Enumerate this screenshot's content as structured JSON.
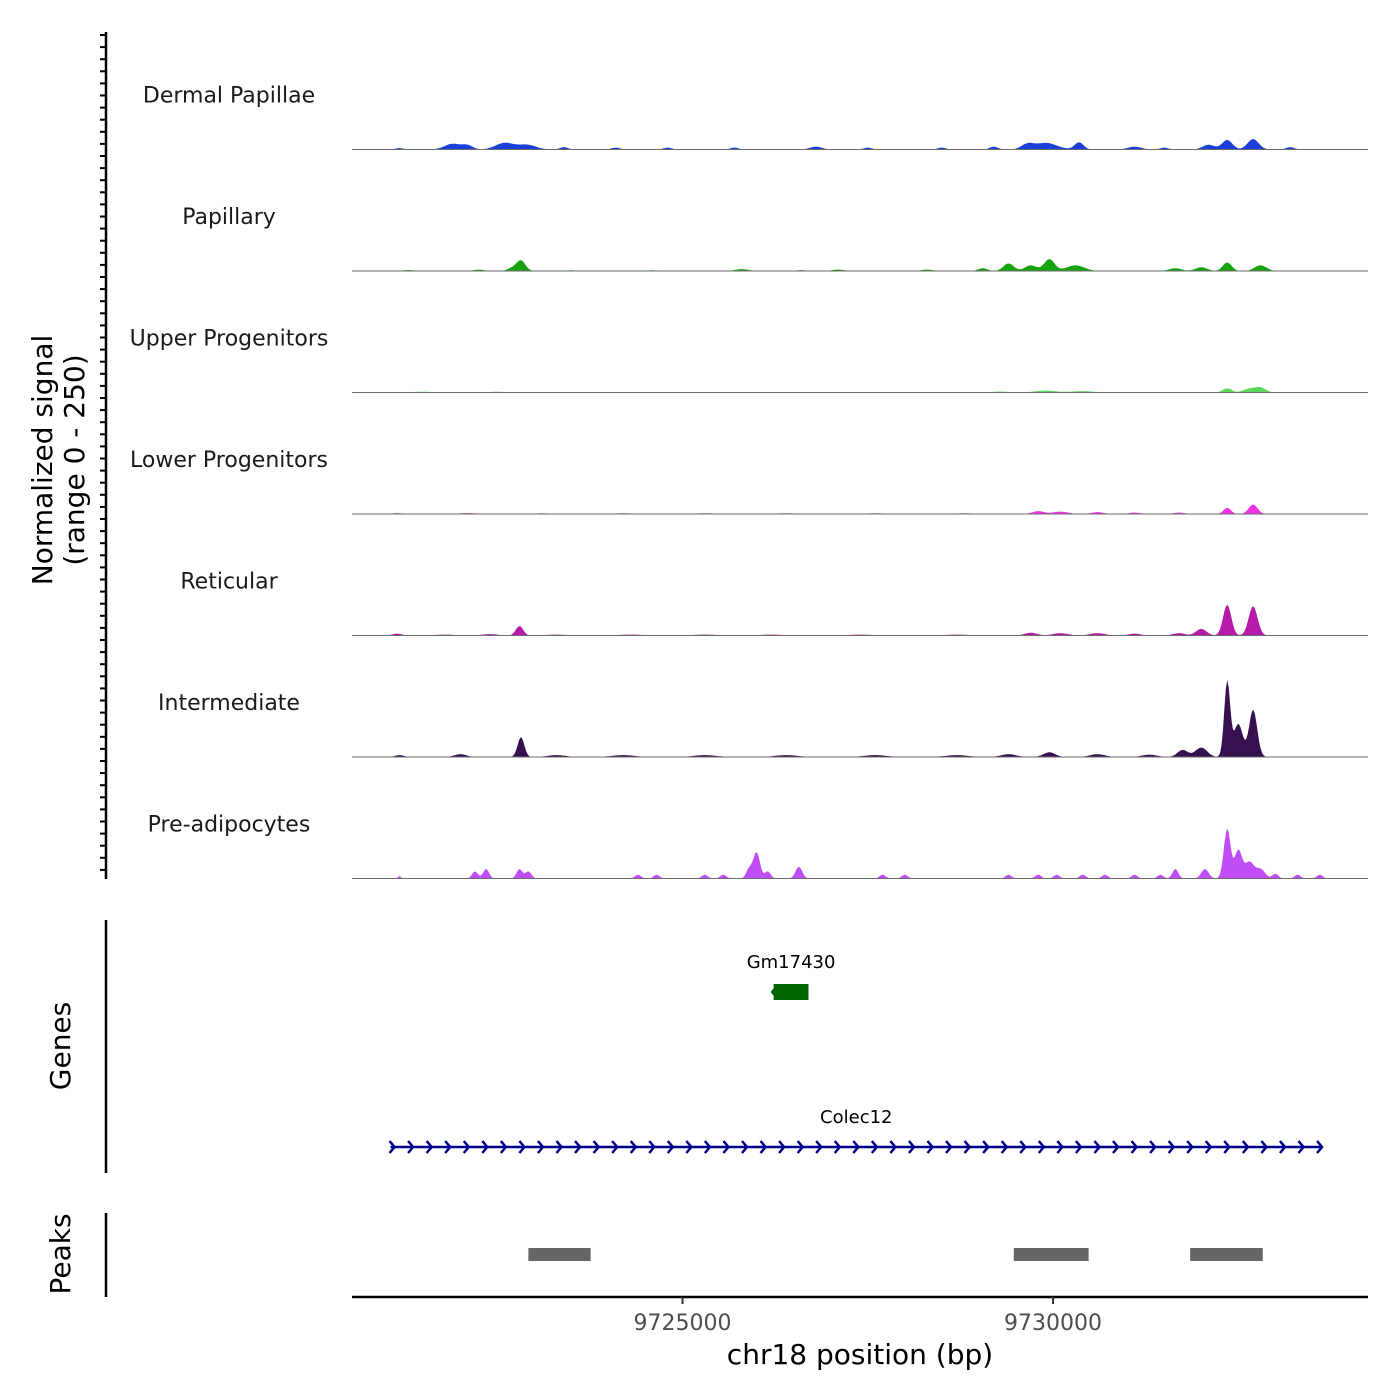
{
  "chart_data": {
    "type": "area",
    "title": "",
    "ylabel_line1": "Normalized signal",
    "ylabel_line2": "(range 0 - 250)",
    "ylim": [
      0,
      250
    ],
    "xlabel": "chr18 position (bp)",
    "xlim": [
      9720540,
      9734250
    ],
    "x_ticks": [
      9725000,
      9730000
    ],
    "x_tick_labels": [
      "9725000",
      "9730000"
    ],
    "series": [
      {
        "name": "Dermal Papillae",
        "color": "#1a3fdc",
        "peaks": [
          [
            9721180,
            3,
            55
          ],
          [
            9721900,
            12,
            110
          ],
          [
            9722100,
            8,
            70
          ],
          [
            9722600,
            14,
            120
          ],
          [
            9722900,
            10,
            120
          ],
          [
            9723400,
            5,
            55
          ],
          [
            9724100,
            4,
            55
          ],
          [
            9724800,
            4,
            55
          ],
          [
            9725700,
            4,
            55
          ],
          [
            9726800,
            6,
            80
          ],
          [
            9727500,
            4,
            55
          ],
          [
            9728500,
            4,
            55
          ],
          [
            9729200,
            6,
            55
          ],
          [
            9729650,
            10,
            80
          ],
          [
            9729900,
            14,
            150
          ],
          [
            9730350,
            15,
            60
          ],
          [
            9731100,
            6,
            90
          ],
          [
            9731500,
            4,
            55
          ],
          [
            9732100,
            10,
            80
          ],
          [
            9732350,
            20,
            70
          ],
          [
            9732700,
            22,
            75
          ],
          [
            9733200,
            5,
            55
          ]
        ]
      },
      {
        "name": "Papillary",
        "color": "#17a30e",
        "peaks": [
          [
            9721300,
            2,
            80
          ],
          [
            9722250,
            3,
            70
          ],
          [
            9722700,
            6,
            60
          ],
          [
            9722820,
            22,
            60
          ],
          [
            9723500,
            1.5,
            70
          ],
          [
            9724600,
            1.5,
            80
          ],
          [
            9725800,
            4,
            90
          ],
          [
            9726600,
            2,
            60
          ],
          [
            9727100,
            3,
            80
          ],
          [
            9728300,
            3,
            80
          ],
          [
            9729050,
            6,
            60
          ],
          [
            9729400,
            16,
            70
          ],
          [
            9729700,
            12,
            80
          ],
          [
            9729950,
            25,
            70
          ],
          [
            9730300,
            12,
            120
          ],
          [
            9731650,
            6,
            80
          ],
          [
            9732000,
            8,
            80
          ],
          [
            9732350,
            18,
            60
          ],
          [
            9732800,
            12,
            80
          ]
        ]
      },
      {
        "name": "Upper Progenitors",
        "color": "#5bd85a",
        "peaks": [
          [
            9721500,
            1.5,
            150
          ],
          [
            9722500,
            1.5,
            120
          ],
          [
            9723400,
            1,
            150
          ],
          [
            9724600,
            1,
            120
          ],
          [
            9725900,
            1,
            140
          ],
          [
            9727100,
            1,
            120
          ],
          [
            9728300,
            1,
            120
          ],
          [
            9729300,
            2,
            100
          ],
          [
            9729900,
            4,
            140
          ],
          [
            9730400,
            3,
            140
          ],
          [
            9732350,
            9,
            60
          ],
          [
            9732650,
            8,
            80
          ],
          [
            9732800,
            10,
            70
          ]
        ]
      },
      {
        "name": "Lower Progenitors",
        "color": "#f12fe4",
        "peaks": [
          [
            9721150,
            2,
            60
          ],
          [
            9722100,
            2,
            120
          ],
          [
            9723100,
            1.5,
            100
          ],
          [
            9724200,
            1.5,
            150
          ],
          [
            9725300,
            1.5,
            150
          ],
          [
            9726400,
            1.5,
            150
          ],
          [
            9727600,
            1.5,
            150
          ],
          [
            9728800,
            1.5,
            120
          ],
          [
            9729800,
            6,
            80
          ],
          [
            9730100,
            5,
            100
          ],
          [
            9730600,
            4,
            80
          ],
          [
            9731100,
            3,
            80
          ],
          [
            9731700,
            3,
            80
          ],
          [
            9732350,
            13,
            50
          ],
          [
            9732700,
            20,
            60
          ]
        ]
      },
      {
        "name": "Reticular",
        "color": "#b51aa8",
        "peaks": [
          [
            9721150,
            4,
            60
          ],
          [
            9721800,
            2,
            120
          ],
          [
            9722400,
            3,
            100
          ],
          [
            9722800,
            20,
            50
          ],
          [
            9723300,
            2,
            120
          ],
          [
            9724300,
            2,
            150
          ],
          [
            9725300,
            2,
            150
          ],
          [
            9726200,
            2,
            150
          ],
          [
            9727400,
            2,
            150
          ],
          [
            9728700,
            2,
            150
          ],
          [
            9729700,
            6,
            80
          ],
          [
            9730100,
            5,
            100
          ],
          [
            9730600,
            5,
            100
          ],
          [
            9731100,
            4,
            80
          ],
          [
            9731700,
            5,
            80
          ],
          [
            9732000,
            14,
            70
          ],
          [
            9732350,
            65,
            55
          ],
          [
            9732700,
            62,
            60
          ]
        ]
      },
      {
        "name": "Intermediate",
        "color": "#36104f",
        "peaks": [
          [
            9721180,
            4,
            60
          ],
          [
            9722000,
            6,
            80
          ],
          [
            9722820,
            42,
            45
          ],
          [
            9723300,
            4,
            120
          ],
          [
            9724200,
            4,
            150
          ],
          [
            9725300,
            4,
            150
          ],
          [
            9726400,
            4,
            150
          ],
          [
            9727600,
            4,
            150
          ],
          [
            9728700,
            4,
            150
          ],
          [
            9729400,
            6,
            100
          ],
          [
            9729950,
            10,
            80
          ],
          [
            9730600,
            6,
            100
          ],
          [
            9731300,
            5,
            100
          ],
          [
            9731750,
            15,
            70
          ],
          [
            9732000,
            20,
            80
          ],
          [
            9732350,
            160,
            40
          ],
          [
            9732500,
            70,
            60
          ],
          [
            9732700,
            100,
            55
          ]
        ]
      },
      {
        "name": "Pre-adipocytes",
        "color": "#bf4ef6",
        "peaks": [
          [
            9721180,
            5,
            20
          ],
          [
            9722200,
            15,
            40
          ],
          [
            9722350,
            20,
            40
          ],
          [
            9722800,
            20,
            40
          ],
          [
            9722920,
            15,
            40
          ],
          [
            9724400,
            8,
            40
          ],
          [
            9724650,
            8,
            40
          ],
          [
            9725300,
            8,
            40
          ],
          [
            9725550,
            8,
            40
          ],
          [
            9725900,
            20,
            40
          ],
          [
            9726000,
            55,
            45
          ],
          [
            9726150,
            15,
            40
          ],
          [
            9726570,
            25,
            45
          ],
          [
            9727700,
            8,
            40
          ],
          [
            9728000,
            8,
            40
          ],
          [
            9729400,
            8,
            40
          ],
          [
            9729800,
            8,
            40
          ],
          [
            9730050,
            8,
            40
          ],
          [
            9730400,
            8,
            40
          ],
          [
            9730700,
            8,
            40
          ],
          [
            9731100,
            8,
            40
          ],
          [
            9731450,
            8,
            40
          ],
          [
            9731650,
            20,
            40
          ],
          [
            9732050,
            20,
            50
          ],
          [
            9732350,
            105,
            45
          ],
          [
            9732500,
            60,
            50
          ],
          [
            9732650,
            35,
            60
          ],
          [
            9732800,
            20,
            60
          ],
          [
            9733000,
            10,
            40
          ],
          [
            9733300,
            8,
            40
          ],
          [
            9733600,
            8,
            40
          ]
        ]
      }
    ],
    "genes": [
      {
        "name": "Gm17430",
        "start": 9726230,
        "end": 9726700,
        "strand": "-",
        "color": "#006400"
      },
      {
        "name": "Colec12",
        "start": 9721060,
        "end": 9733630,
        "strand": "+",
        "color": "#00008b"
      }
    ],
    "genes_label": "Genes",
    "peaks_label": "Peaks",
    "peaks": [
      {
        "start": 9722920,
        "end": 9723760
      },
      {
        "start": 9729470,
        "end": 9730480
      },
      {
        "start": 9731850,
        "end": 9732830
      }
    ]
  }
}
